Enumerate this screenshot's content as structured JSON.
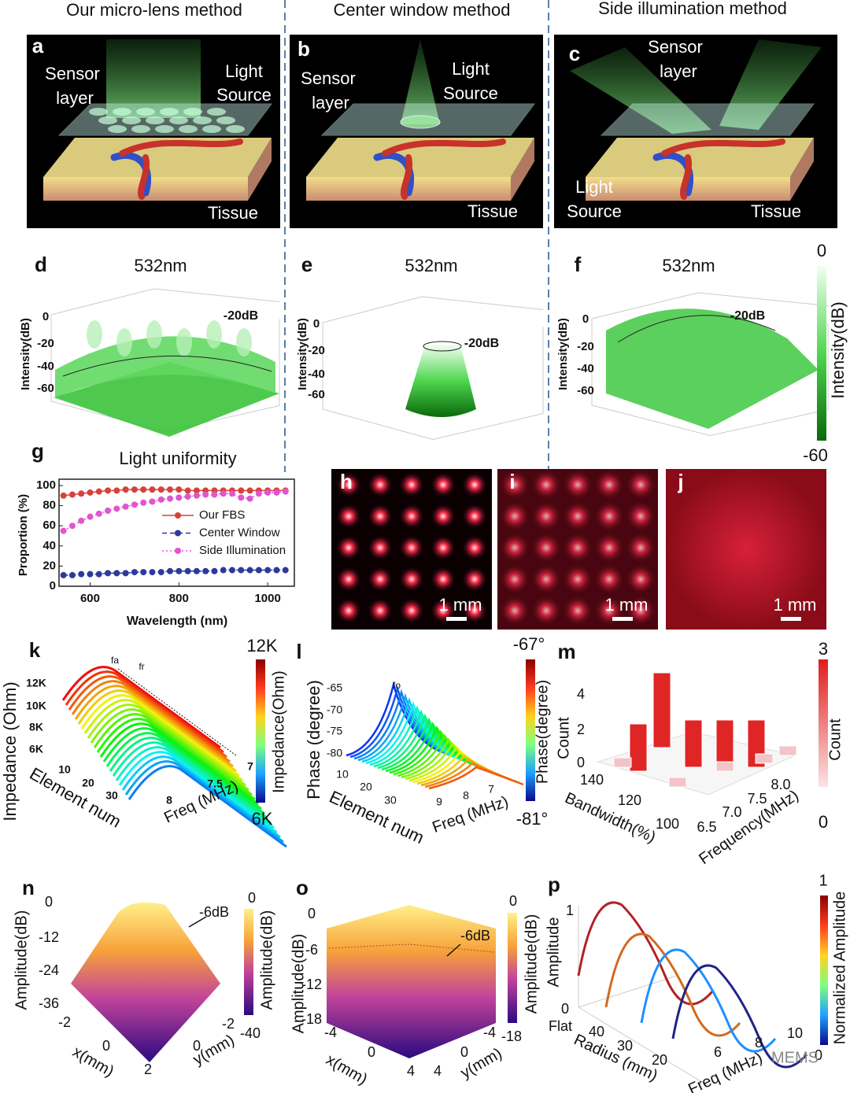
{
  "top": {
    "columns": [
      "Our micro-lens method",
      "Center window method",
      "Side illumination method"
    ],
    "a": {
      "label": "a",
      "sensor": [
        "Sensor",
        "layer"
      ],
      "light": [
        "Light",
        "Source"
      ],
      "tissue": "Tissue"
    },
    "b": {
      "label": "b",
      "sensor": [
        "Sensor",
        "layer"
      ],
      "light": [
        "Light",
        "Source"
      ],
      "tissue": "Tissue"
    },
    "c": {
      "label": "c",
      "sensor": [
        "Sensor",
        "layer"
      ],
      "light": [
        "Light",
        "Source"
      ],
      "tissue": "Tissue"
    }
  },
  "intensity": {
    "d": {
      "label": "d",
      "title": "532nm",
      "axis": "Intensity(dB)",
      "ticks": [
        "0",
        "-20",
        "-40",
        "-60"
      ],
      "contour": "-20dB"
    },
    "e": {
      "label": "e",
      "title": "532nm",
      "axis": "Intensity(dB)",
      "ticks": [
        "0",
        "-20",
        "-40",
        "-60"
      ],
      "contour": "-20dB"
    },
    "f": {
      "label": "f",
      "title": "532nm",
      "axis": "Intensity(dB)",
      "ticks": [
        "0",
        "-20",
        "-40",
        "-60"
      ],
      "contour": "-20dB"
    },
    "colorbar": {
      "max": "0",
      "min": "-60",
      "label": "Intensity(dB)"
    }
  },
  "chart_data": {
    "type": "line",
    "label": "g",
    "title": "Light uniformity",
    "xlabel": "Wavelength (nm)",
    "ylabel": "Proportion (%)",
    "x": [
      540,
      560,
      580,
      600,
      620,
      640,
      660,
      680,
      700,
      720,
      740,
      760,
      780,
      800,
      820,
      840,
      860,
      880,
      900,
      920,
      940,
      960,
      980,
      1000,
      1020,
      1040
    ],
    "series": [
      {
        "name": "Our FBS",
        "color": "#d9403a",
        "values": [
          90,
          91,
          92,
          93,
          94,
          95,
          95,
          96,
          96,
          96,
          96,
          96,
          96,
          96,
          95,
          95,
          95,
          95,
          95,
          95,
          95,
          95,
          95,
          95,
          95,
          95
        ]
      },
      {
        "name": "Center Window",
        "color": "#2b3a9c",
        "values": [
          11,
          11,
          12,
          12,
          12,
          13,
          13,
          13,
          14,
          14,
          14,
          14,
          15,
          15,
          15,
          15,
          15,
          15,
          16,
          16,
          16,
          16,
          16,
          16,
          16,
          16
        ]
      },
      {
        "name": "Side Illumination",
        "color": "#e055d0",
        "values": [
          55,
          60,
          65,
          69,
          72,
          75,
          77,
          79,
          81,
          83,
          84,
          86,
          87,
          88,
          89,
          90,
          91,
          91,
          92,
          92,
          88,
          87,
          92,
          93,
          93,
          94
        ]
      }
    ],
    "xlim": [
      530,
      1060
    ],
    "ylim": [
      0,
      100
    ],
    "xticks": [
      600,
      800,
      1000
    ],
    "yticks": [
      0,
      20,
      40,
      60,
      80,
      100
    ]
  },
  "photos": {
    "h": {
      "label": "h",
      "scale": "1 mm"
    },
    "i": {
      "label": "i",
      "scale": "1 mm"
    },
    "j": {
      "label": "j",
      "scale": "1 mm"
    }
  },
  "k": {
    "label": "k",
    "ylabel": "Impedance (Ohm)",
    "yticks": [
      "12K",
      "10K",
      "8K",
      "6K"
    ],
    "xlabel": "Element num",
    "xticks": [
      "10",
      "20",
      "30"
    ],
    "zlabel": "Freq (MHz)",
    "zticks": [
      "7",
      "7.5",
      "8"
    ],
    "annotations": [
      "fa",
      "fr"
    ],
    "colorbar": {
      "max": "12K",
      "min": "6K",
      "label": "Impedance(Ohm)"
    }
  },
  "l": {
    "label": "l",
    "ylabel": "Phase (degree)",
    "yticks": [
      "-65",
      "-70",
      "-75",
      "-80"
    ],
    "xlabel": "Element num",
    "xticks": [
      "10",
      "20",
      "30"
    ],
    "zlabel": "Freq (MHz)",
    "zticks": [
      "9",
      "8",
      "7"
    ],
    "annotation": "fo",
    "colorbar": {
      "max": "-67°",
      "min": "-81°",
      "label": "Phase(degree)"
    }
  },
  "m": {
    "label": "m",
    "zlabel": "Count",
    "zticks": [
      "4",
      "2",
      "0"
    ],
    "xlabel": "Bandwidth(%)",
    "xticks": [
      "140",
      "120",
      "100"
    ],
    "ylabel": "Frequency(MHz)",
    "yticks": [
      "6.5",
      "7.0",
      "7.5",
      "8.0"
    ],
    "colorbar": {
      "max": "3",
      "min": "0",
      "label": "Count"
    }
  },
  "n": {
    "label": "n",
    "zlabel": "Amplitude(dB)",
    "zticks": [
      "0",
      "-12",
      "-24",
      "-36"
    ],
    "xlabel": "x(mm)",
    "xticks": [
      "-2",
      "0",
      "2"
    ],
    "ylabel": "y(mm)",
    "yticks": [
      "0",
      "-2"
    ],
    "annotation": "-6dB",
    "colorbar": {
      "max": "0",
      "min": "-40",
      "label": "Amplitude(dB)"
    }
  },
  "o": {
    "label": "o",
    "zlabel": "Amplitude(dB)",
    "zticks": [
      "0",
      "-6",
      "-12",
      "-18"
    ],
    "xlabel": "x(mm)",
    "xticks": [
      "-4",
      "0",
      "4"
    ],
    "ylabel": "y(mm)",
    "yticks": [
      "4",
      "0",
      "-4"
    ],
    "annotation": "-6dB",
    "colorbar": {
      "max": "0",
      "min": "-18",
      "label": "Amplitude(dB)"
    }
  },
  "p": {
    "label": "p",
    "zlabel": "Amplitude",
    "zticks": [
      "1",
      "0"
    ],
    "xlabel": "Radius (mm)",
    "xticks": [
      "Flat",
      "40",
      "30",
      "20"
    ],
    "ylabel": "Freq (MHz)",
    "yticks": [
      "6",
      "8",
      "10"
    ],
    "colorbar": {
      "max": "1",
      "min": "0",
      "label": "Normalized Amplitude"
    }
  },
  "watermark": "MEMS"
}
